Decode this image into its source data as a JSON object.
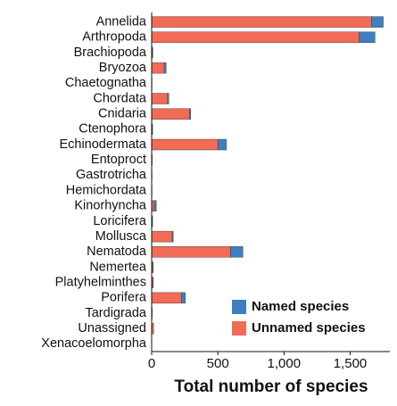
{
  "chart_data": {
    "type": "stacked-barh",
    "xlabel": "Total number of species",
    "categories": [
      "Annelida",
      "Arthropoda",
      "Brachiopoda",
      "Bryozoa",
      "Chaetognatha",
      "Chordata",
      "Cnidaria",
      "Ctenophora",
      "Echinodermata",
      "Entoproct",
      "Gastrotricha",
      "Hemichordata",
      "Kinorhyncha",
      "Loricifera",
      "Mollusca",
      "Nematoda",
      "Nemertea",
      "Platyhelminthes",
      "Porifera",
      "Tardigrada",
      "Unassigned",
      "Xenacoelomorpha"
    ],
    "series": [
      {
        "name": "Named species",
        "color": "#3d7fc0",
        "values": [
          90,
          120,
          3,
          15,
          1,
          10,
          10,
          2,
          65,
          1,
          1,
          1,
          15,
          2,
          8,
          95,
          2,
          2,
          30,
          1,
          0,
          0
        ]
      },
      {
        "name": "Unnamed species",
        "color": "#f26b55",
        "values": [
          1660,
          1568,
          5,
          95,
          2,
          120,
          285,
          5,
          500,
          3,
          2,
          2,
          20,
          5,
          155,
          595,
          10,
          10,
          225,
          3,
          15,
          2
        ]
      }
    ],
    "xlim": [
      0,
      1800
    ],
    "xticks": [
      0,
      500,
      {
        "value": 1000,
        "label": "1,000"
      },
      {
        "value": 1500,
        "label": "1,500"
      }
    ],
    "legend": "lower right"
  }
}
